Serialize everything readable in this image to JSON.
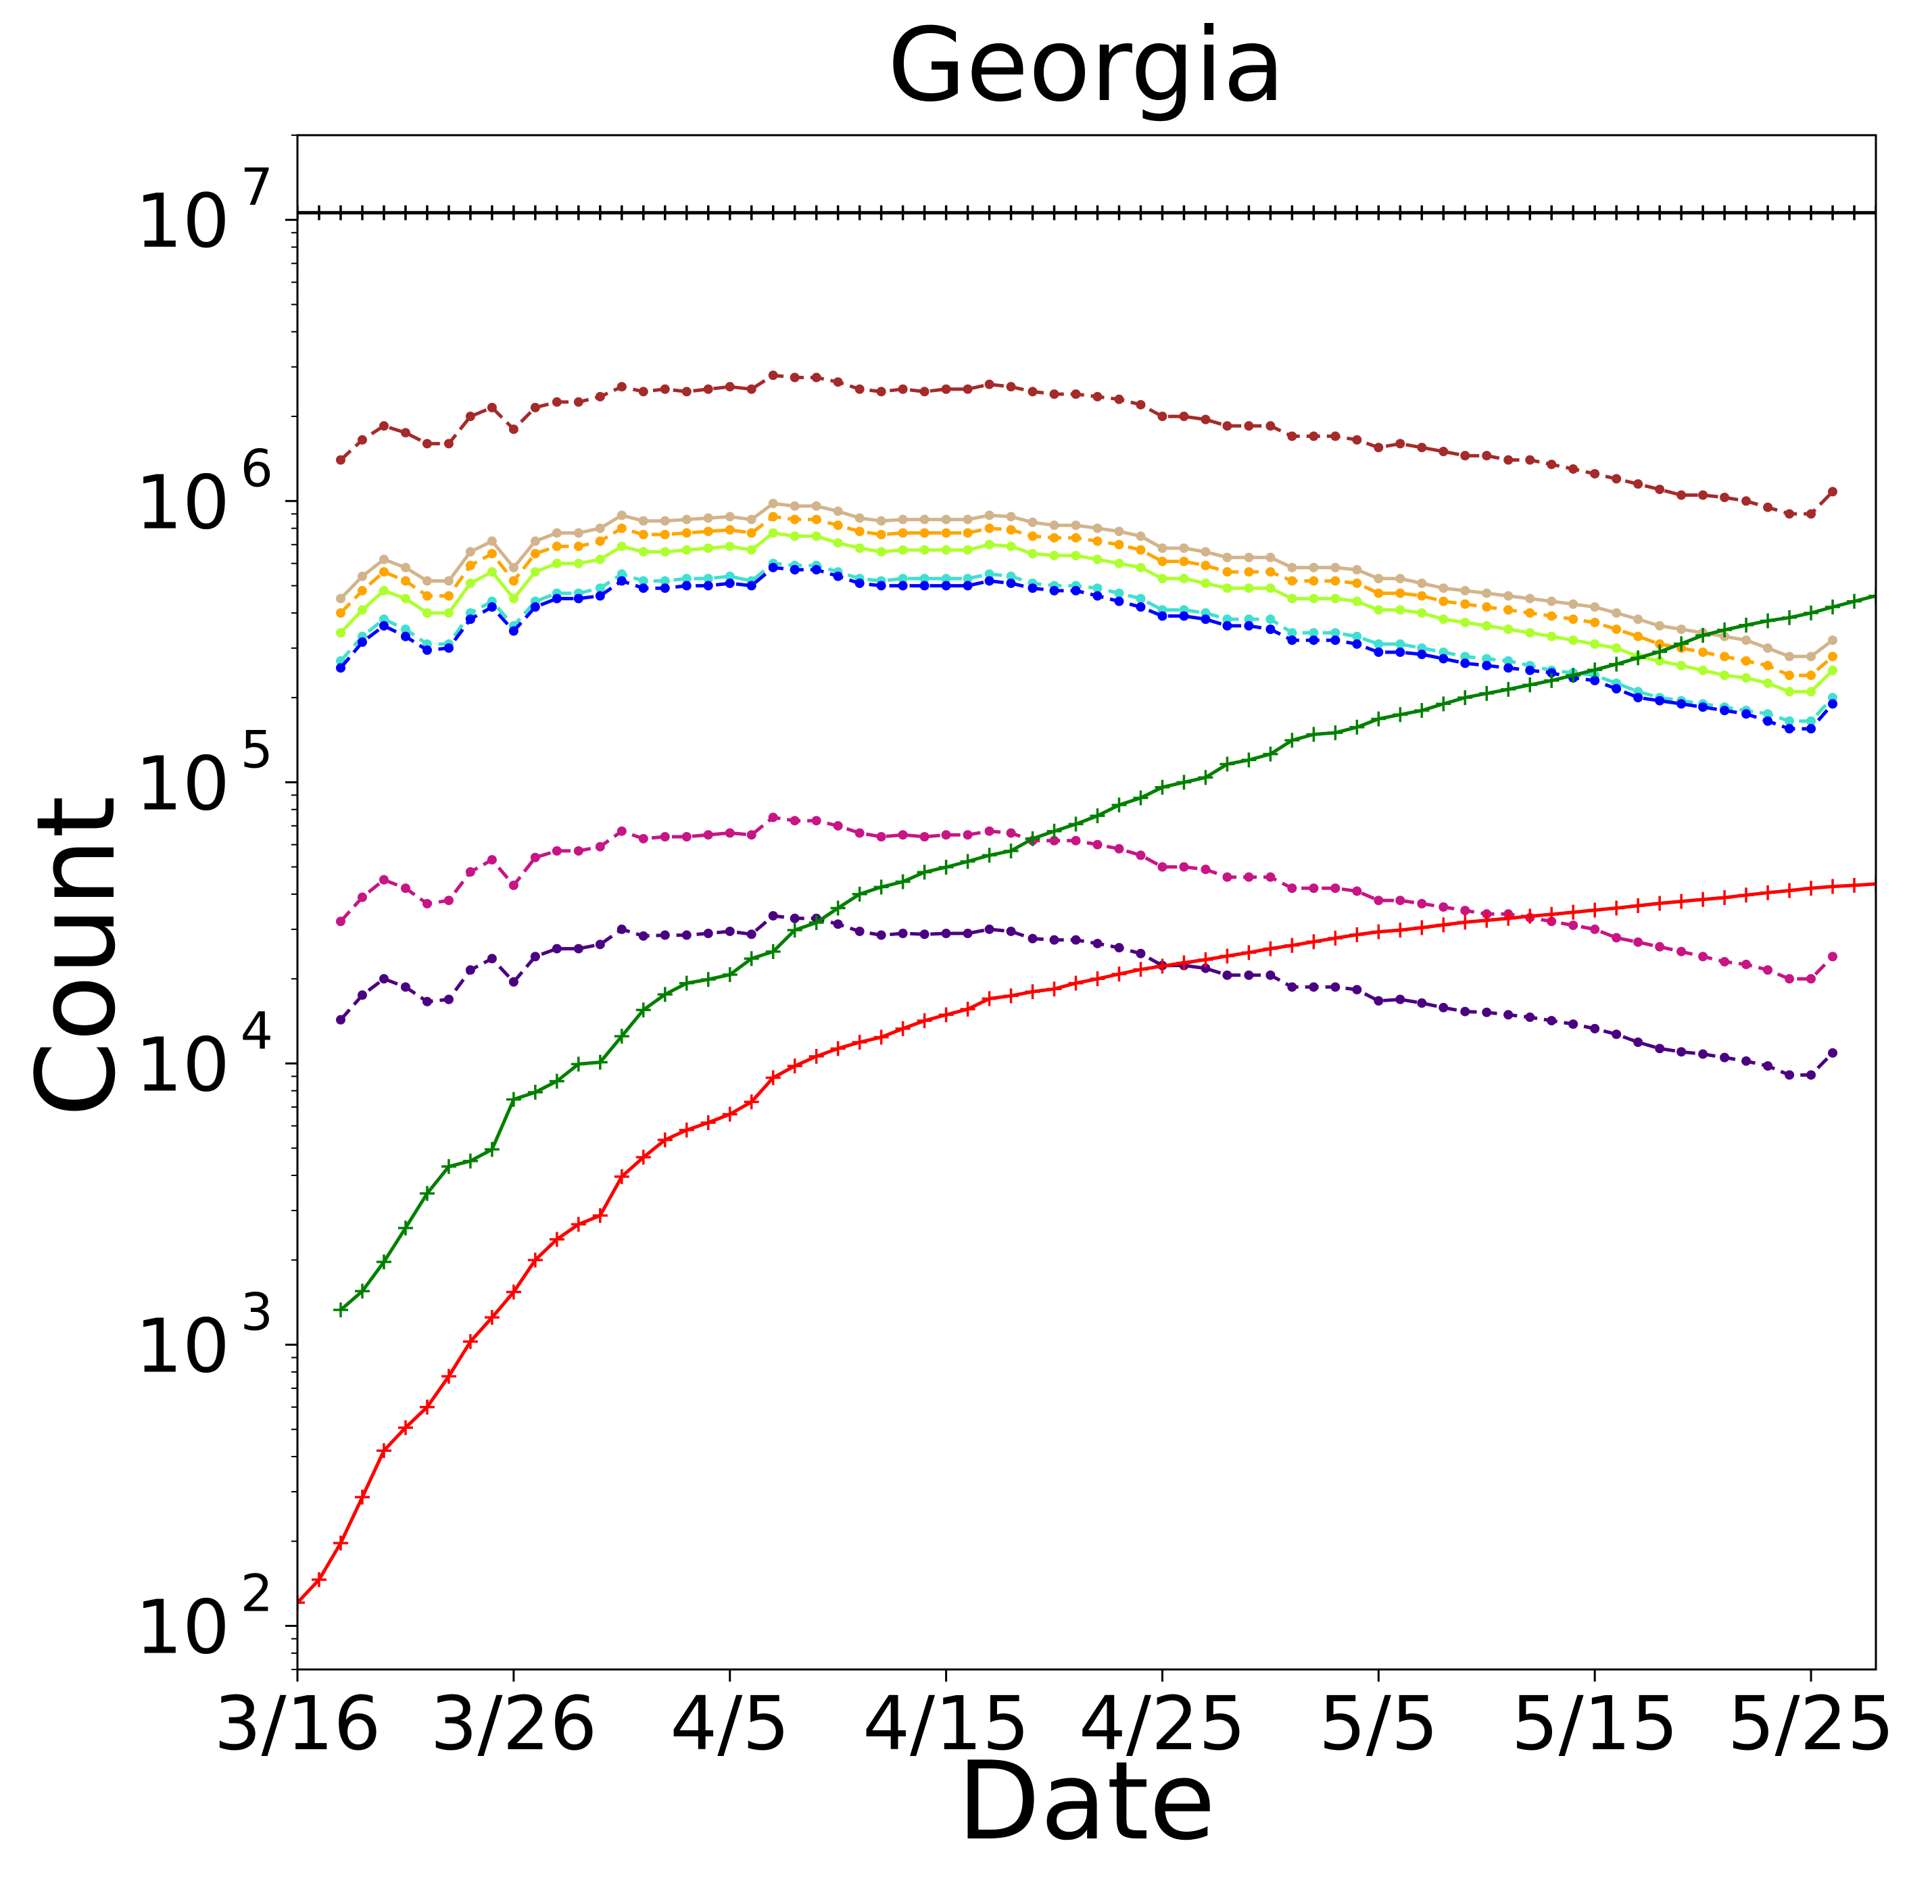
{
  "chart_data": {
    "type": "line",
    "title": "Georgia",
    "xlabel": "Date",
    "ylabel": "Count",
    "yscale": "log",
    "ylim": [
      70,
      20000000
    ],
    "xlim": [
      0,
      73
    ],
    "x_start_label": "3/16",
    "x_ticks": [
      {
        "x": 0,
        "label": "3/16"
      },
      {
        "x": 10,
        "label": "3/26"
      },
      {
        "x": 20,
        "label": "4/5"
      },
      {
        "x": 30,
        "label": "4/15"
      },
      {
        "x": 40,
        "label": "4/25"
      },
      {
        "x": 50,
        "label": "5/5"
      },
      {
        "x": 60,
        "label": "5/15"
      },
      {
        "x": 70,
        "label": "5/25"
      }
    ],
    "y_ticks": [
      {
        "exp": 2,
        "label": "10",
        "sup": "2"
      },
      {
        "exp": 3,
        "label": "10",
        "sup": "3"
      },
      {
        "exp": 4,
        "label": "10",
        "sup": "4"
      },
      {
        "exp": 5,
        "label": "10",
        "sup": "5"
      },
      {
        "exp": 6,
        "label": "10",
        "sup": "6"
      },
      {
        "exp": 7,
        "label": "10",
        "sup": "7"
      }
    ],
    "grid": false,
    "series": [
      {
        "color": "#000000",
        "dash": false,
        "marker": "plus",
        "x_start": 0,
        "values": [
          10600000,
          10600000,
          10600000,
          10600000,
          10600000,
          10600000,
          10600000,
          10600000,
          10600000,
          10600000,
          10600000,
          10600000,
          10600000,
          10600000,
          10600000,
          10600000,
          10600000,
          10600000,
          10600000,
          10600000,
          10600000,
          10600000,
          10600000,
          10600000,
          10600000,
          10600000,
          10600000,
          10600000,
          10600000,
          10600000,
          10600000,
          10600000,
          10600000,
          10600000,
          10600000,
          10600000,
          10600000,
          10600000,
          10600000,
          10600000,
          10600000,
          10600000,
          10600000,
          10600000,
          10600000,
          10600000,
          10600000,
          10600000,
          10600000,
          10600000,
          10600000,
          10600000,
          10600000,
          10600000,
          10600000,
          10600000,
          10600000,
          10600000,
          10600000,
          10600000,
          10600000,
          10600000,
          10600000,
          10600000,
          10600000,
          10600000,
          10600000,
          10600000,
          10600000,
          10600000,
          10600000,
          10600000,
          10600000,
          10600000
        ]
      },
      {
        "color": "#a52a2a",
        "dash": true,
        "marker": "dot",
        "x_start": 2,
        "values": [
          1400000,
          1650000,
          1850000,
          1750000,
          1600000,
          1600000,
          2000000,
          2150000,
          1800000,
          2150000,
          2250000,
          2250000,
          2350000,
          2550000,
          2450000,
          2500000,
          2450000,
          2500000,
          2550000,
          2500000,
          2800000,
          2750000,
          2750000,
          2650000,
          2500000,
          2450000,
          2500000,
          2450000,
          2500000,
          2500000,
          2600000,
          2550000,
          2450000,
          2400000,
          2400000,
          2350000,
          2300000,
          2200000,
          2000000,
          2000000,
          1950000,
          1850000,
          1850000,
          1850000,
          1700000,
          1700000,
          1700000,
          1650000,
          1550000,
          1600000,
          1550000,
          1500000,
          1450000,
          1450000,
          1400000,
          1400000,
          1350000,
          1300000,
          1250000,
          1200000,
          1150000,
          1100000,
          1050000,
          1050000,
          1030000,
          1000000,
          950000,
          900000,
          900000,
          1080000
        ]
      },
      {
        "color": "#d2b48c",
        "dash": false,
        "marker": "dot",
        "x_start": 2,
        "values": [
          450000,
          540000,
          620000,
          580000,
          520000,
          520000,
          660000,
          720000,
          580000,
          720000,
          770000,
          770000,
          800000,
          890000,
          850000,
          850000,
          860000,
          870000,
          880000,
          860000,
          980000,
          960000,
          960000,
          920000,
          870000,
          850000,
          860000,
          860000,
          860000,
          860000,
          890000,
          880000,
          840000,
          820000,
          820000,
          800000,
          780000,
          750000,
          680000,
          680000,
          660000,
          630000,
          630000,
          630000,
          580000,
          580000,
          580000,
          570000,
          530000,
          530000,
          510000,
          490000,
          480000,
          470000,
          460000,
          450000,
          440000,
          430000,
          420000,
          400000,
          380000,
          360000,
          350000,
          340000,
          330000,
          320000,
          300000,
          280000,
          280000,
          320000
        ]
      },
      {
        "color": "#ffa500",
        "dash": true,
        "marker": "dot",
        "x_start": 2,
        "values": [
          400000,
          480000,
          560000,
          520000,
          460000,
          460000,
          590000,
          650000,
          520000,
          650000,
          690000,
          690000,
          720000,
          800000,
          760000,
          760000,
          770000,
          780000,
          790000,
          770000,
          880000,
          860000,
          860000,
          820000,
          780000,
          760000,
          770000,
          770000,
          770000,
          770000,
          800000,
          790000,
          750000,
          740000,
          740000,
          720000,
          700000,
          670000,
          610000,
          610000,
          590000,
          560000,
          560000,
          560000,
          520000,
          520000,
          520000,
          510000,
          470000,
          470000,
          460000,
          440000,
          430000,
          420000,
          410000,
          400000,
          390000,
          380000,
          370000,
          350000,
          330000,
          310000,
          300000,
          290000,
          280000,
          270000,
          260000,
          240000,
          240000,
          280000
        ]
      },
      {
        "color": "#adff2f",
        "dash": false,
        "marker": "dot",
        "x_start": 2,
        "values": [
          340000,
          410000,
          480000,
          450000,
          400000,
          400000,
          510000,
          560000,
          450000,
          560000,
          600000,
          600000,
          620000,
          690000,
          660000,
          660000,
          670000,
          680000,
          690000,
          670000,
          770000,
          750000,
          750000,
          710000,
          680000,
          660000,
          670000,
          670000,
          670000,
          670000,
          700000,
          690000,
          650000,
          640000,
          640000,
          620000,
          600000,
          580000,
          530000,
          530000,
          510000,
          490000,
          490000,
          490000,
          450000,
          450000,
          450000,
          440000,
          410000,
          410000,
          400000,
          380000,
          370000,
          360000,
          350000,
          340000,
          330000,
          320000,
          310000,
          300000,
          280000,
          270000,
          260000,
          250000,
          240000,
          235000,
          225000,
          210000,
          210000,
          250000
        ]
      },
      {
        "color": "#40e0d0",
        "dash": true,
        "marker": "dot",
        "x_start": 2,
        "values": [
          270000,
          330000,
          380000,
          350000,
          310000,
          310000,
          400000,
          440000,
          360000,
          440000,
          470000,
          470000,
          490000,
          550000,
          520000,
          520000,
          530000,
          530000,
          540000,
          520000,
          600000,
          590000,
          590000,
          560000,
          530000,
          520000,
          530000,
          530000,
          530000,
          530000,
          550000,
          540000,
          510000,
          500000,
          500000,
          490000,
          470000,
          450000,
          410000,
          410000,
          400000,
          380000,
          380000,
          380000,
          340000,
          340000,
          340000,
          330000,
          310000,
          310000,
          300000,
          290000,
          280000,
          275000,
          270000,
          260000,
          250000,
          245000,
          240000,
          225000,
          210000,
          200000,
          195000,
          190000,
          185000,
          180000,
          175000,
          165000,
          165000,
          200000
        ]
      },
      {
        "color": "#0000ff",
        "dash": true,
        "marker": "dot",
        "x_start": 2,
        "values": [
          255000,
          315000,
          360000,
          330000,
          295000,
          300000,
          380000,
          420000,
          345000,
          420000,
          450000,
          450000,
          460000,
          520000,
          490000,
          490000,
          500000,
          500000,
          510000,
          500000,
          580000,
          570000,
          570000,
          540000,
          510000,
          500000,
          500000,
          500000,
          500000,
          500000,
          520000,
          510000,
          490000,
          480000,
          480000,
          460000,
          440000,
          420000,
          390000,
          390000,
          380000,
          360000,
          360000,
          350000,
          320000,
          320000,
          320000,
          310000,
          290000,
          290000,
          285000,
          275000,
          265000,
          260000,
          255000,
          250000,
          245000,
          235000,
          230000,
          215000,
          200000,
          195000,
          190000,
          185000,
          180000,
          175000,
          165000,
          155000,
          155000,
          190000
        ]
      },
      {
        "color": "#c71585",
        "dash": true,
        "marker": "dot",
        "x_start": 2,
        "values": [
          32000,
          39000,
          45000,
          42000,
          37000,
          38000,
          48000,
          53000,
          43000,
          54000,
          57000,
          57000,
          59000,
          67000,
          63000,
          64000,
          64000,
          65000,
          66000,
          65000,
          75000,
          73000,
          73000,
          70000,
          66000,
          64000,
          65000,
          64000,
          65000,
          65000,
          67000,
          66000,
          62000,
          62000,
          62000,
          60000,
          58000,
          55000,
          50000,
          50000,
          49000,
          46000,
          46000,
          46000,
          42000,
          42000,
          42000,
          41000,
          38000,
          38000,
          37000,
          36000,
          35000,
          34000,
          34000,
          33000,
          32000,
          31000,
          30000,
          28000,
          27000,
          26000,
          25000,
          24000,
          23000,
          22500,
          21500,
          20000,
          20000,
          24000
        ]
      },
      {
        "color": "#4b0082",
        "dash": true,
        "marker": "dot",
        "x_start": 2,
        "values": [
          14300,
          17500,
          20000,
          18700,
          16600,
          16900,
          21500,
          23600,
          19500,
          24000,
          25600,
          25600,
          26500,
          30000,
          28400,
          28600,
          28600,
          29000,
          29500,
          28800,
          33500,
          32800,
          32800,
          31300,
          29500,
          28600,
          29000,
          28800,
          29000,
          29000,
          30000,
          29500,
          27800,
          27500,
          27500,
          26700,
          25800,
          24600,
          22300,
          22300,
          21800,
          20600,
          20600,
          20600,
          18700,
          18700,
          18700,
          18300,
          16700,
          16900,
          16400,
          15800,
          15300,
          15200,
          14900,
          14600,
          14200,
          13800,
          13300,
          12700,
          11900,
          11300,
          11000,
          10800,
          10500,
          10200,
          9800,
          9100,
          9100,
          10900
        ]
      },
      {
        "color": "#008000",
        "dash": false,
        "marker": "plus",
        "x_start": 2,
        "values": [
          1330,
          1550,
          1970,
          2600,
          3450,
          4300,
          4500,
          4950,
          7450,
          7900,
          8650,
          9950,
          10100,
          12500,
          15500,
          17600,
          19300,
          19900,
          20700,
          23600,
          25000,
          29800,
          31700,
          35700,
          40000,
          42400,
          44300,
          47900,
          49900,
          52300,
          55000,
          57000,
          63000,
          67000,
          71000,
          76000,
          83000,
          88000,
          96000,
          100000,
          104000,
          116000,
          120000,
          126000,
          141000,
          148000,
          150000,
          157000,
          168000,
          174000,
          180000,
          190000,
          200000,
          207000,
          214000,
          222000,
          230000,
          240000,
          251000,
          263000,
          277000,
          291000,
          311000,
          333000,
          348000,
          362000,
          375000,
          385000,
          400000,
          420000,
          440000,
          460000,
          470000,
          470000,
          400000
        ]
      },
      {
        "color": "#ff0000",
        "dash": false,
        "marker": "plus",
        "x_start": 0,
        "values": [
          121,
          146,
          197,
          287,
          420,
          507,
          600,
          772,
          1026,
          1250,
          1540,
          2000,
          2370,
          2680,
          2880,
          3960,
          4640,
          5350,
          5800,
          6160,
          6600,
          7300,
          8900,
          9800,
          10600,
          11300,
          11900,
          12400,
          13300,
          14200,
          14900,
          15600,
          17000,
          17400,
          18000,
          18400,
          19300,
          20000,
          20800,
          21600,
          22200,
          22800,
          23400,
          24100,
          24800,
          25600,
          26300,
          27100,
          27900,
          28700,
          29400,
          29800,
          30400,
          31100,
          31800,
          32300,
          32800,
          33400,
          33900,
          34500,
          35100,
          35700,
          36400,
          37100,
          37700,
          38300,
          38900,
          39700,
          40500,
          41200,
          42000,
          42600,
          43000,
          43500,
          44000
        ]
      }
    ]
  }
}
